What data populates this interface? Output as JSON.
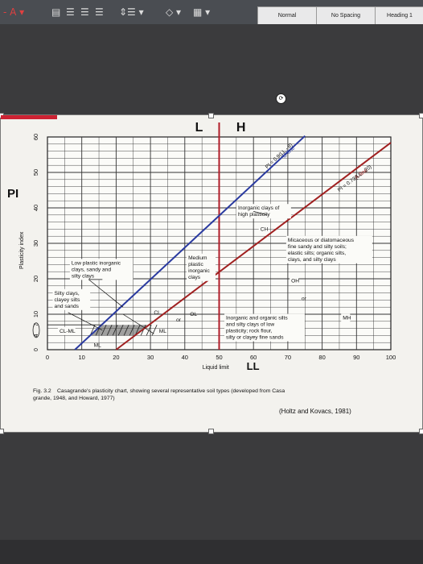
{
  "ribbon": {
    "styles": [
      "Normal",
      "No Spacing",
      "Heading 1"
    ]
  },
  "chart_data": {
    "type": "line",
    "title_letters": [
      "L",
      "H"
    ],
    "ylabel_big": "PI",
    "ylabel_small": "Plasticity index",
    "xlabel_small": "Liquid limit",
    "xlabel_big": "LL",
    "x_ticks": [
      0,
      10,
      20,
      30,
      40,
      50,
      60,
      70,
      80,
      90,
      100
    ],
    "y_ticks": [
      10,
      20,
      30,
      40,
      50,
      60
    ],
    "y_ticks_extra": [
      "7",
      "4",
      "0"
    ],
    "xlim": [
      0,
      100
    ],
    "ylim": [
      0,
      60
    ],
    "series": [
      {
        "name": "U-line",
        "equation": "PI = 0.9(LL - 8)",
        "x": [
          8,
          75
        ],
        "y": [
          0,
          60.3
        ],
        "color": "#2a3aa0"
      },
      {
        "name": "A-line",
        "equation": "PI = 0.73(LL - 20)",
        "x": [
          20,
          100
        ],
        "y": [
          0,
          58.4
        ],
        "color": "#a02020"
      }
    ],
    "vertical_lines": [
      50
    ],
    "labels": {
      "ch_desc": [
        "Inorganic clays of",
        "high plasticity"
      ],
      "ch": "CH",
      "micaceous": [
        "Micaceous or diatomaceous",
        "fine sandy and silty soils;",
        "elastic silts; organic silts,",
        "clays, and silty clays"
      ],
      "oh": "OH",
      "or1": "or",
      "mh": "MH",
      "low_plastic": [
        "Low plastic inorganic",
        "clays, sandy and",
        "silty clays"
      ],
      "medium": [
        "Medium",
        "plastic",
        "inorganic",
        "clays"
      ],
      "silty": [
        "Silty clays,",
        "clayey silts",
        "and sands"
      ],
      "cl": "CL",
      "or2": "or",
      "ol": "OL",
      "clml": "CL-ML",
      "ml1": "ML",
      "ml2": "ML",
      "inorganic_silts": [
        "Inorganic and organic silts",
        "and silty clays of low",
        "plasticity; rock flour,",
        "silty or clayey fine sands"
      ]
    },
    "caption": {
      "fig": "Fig. 3.2",
      "text1": "Casagrande's plasticity chart, showing several representative soil types (developed from Casa",
      "text2": "grande, 1948, and Howard, 1977)",
      "credit": "(Holtz and Kovacs, 1981)"
    }
  }
}
